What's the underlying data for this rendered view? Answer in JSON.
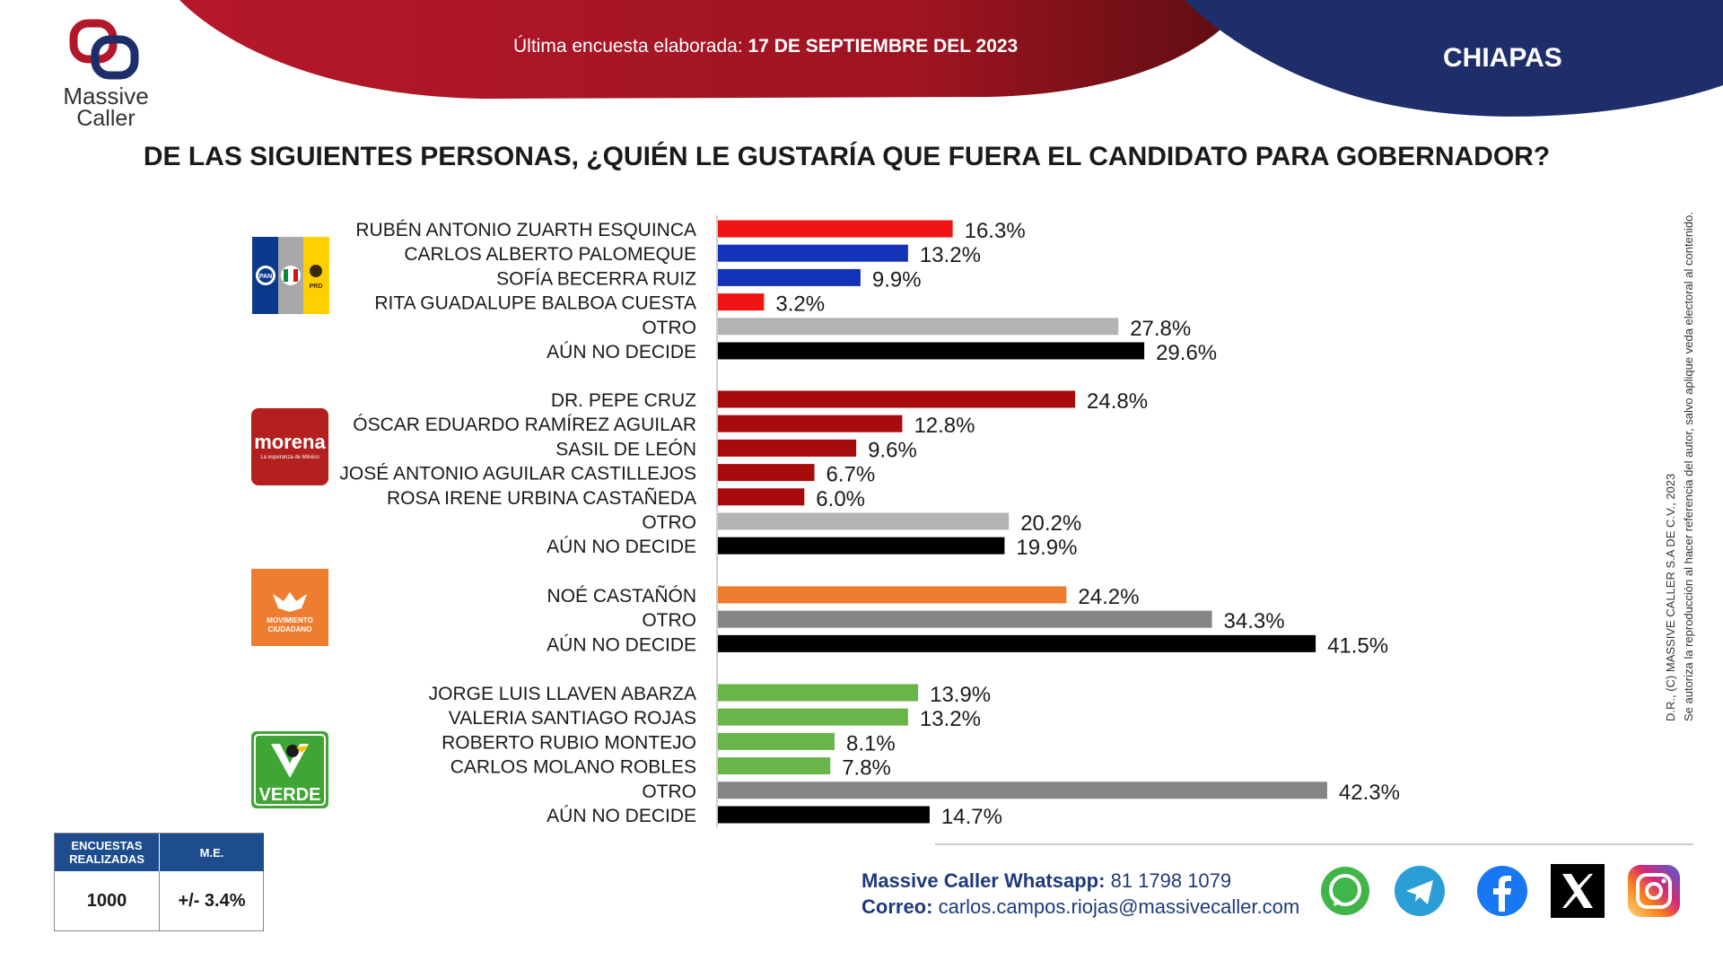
{
  "header": {
    "brand_line1": "Massive",
    "brand_line2": "Caller",
    "survey_prefix": "Última encuesta elaborada: ",
    "survey_date": "17 DE SEPTIEMBRE DEL 2023",
    "state": "CHIAPAS"
  },
  "question": "DE LAS SIGUIENTES PERSONAS, ¿QUIÉN LE GUSTARÍA QUE FUERA EL CANDIDATO PARA GOBERNADOR?",
  "colors": {
    "red": "#f11414",
    "blue": "#1232b8",
    "darkred": "#a80b0b",
    "orange": "#ef7d2f",
    "green": "#6ab54a",
    "lightgray": "#b4b4b4",
    "midgray": "#858585",
    "black": "#000000",
    "header_red": "#a4161d",
    "header_navy": "#1d2e6b"
  },
  "party_logos": {
    "coalition": {
      "pan": "PAN",
      "prd": "PRD"
    },
    "morena": {
      "name": "morena",
      "tagline": "La esperanza de México"
    },
    "mc": {
      "line1": "MOVIMIENTO",
      "line2": "CIUDADANO"
    },
    "verde": {
      "name": "VERDE"
    }
  },
  "chart_data": {
    "type": "bar",
    "orientation": "horizontal",
    "unit": "%",
    "groups": [
      {
        "party": "PAN-PRI-PRD",
        "items": [
          {
            "label": "RUBÉN ANTONIO ZUARTH ESQUINCA",
            "value": 16.3,
            "display": "16.3%",
            "color": "red"
          },
          {
            "label": "CARLOS ALBERTO PALOMEQUE",
            "value": 13.2,
            "display": "13.2%",
            "color": "blue"
          },
          {
            "label": "SOFÍA BECERRA RUIZ",
            "value": 9.9,
            "display": "9.9%",
            "color": "blue"
          },
          {
            "label": "RITA GUADALUPE BALBOA CUESTA",
            "value": 3.2,
            "display": "3.2%",
            "color": "red"
          },
          {
            "label": "OTRO",
            "value": 27.8,
            "display": "27.8%",
            "color": "lightgray"
          },
          {
            "label": "AÚN NO DECIDE",
            "value": 29.6,
            "display": "29.6%",
            "color": "black"
          }
        ]
      },
      {
        "party": "MORENA",
        "items": [
          {
            "label": "DR. PEPE CRUZ",
            "value": 24.8,
            "display": "24.8%",
            "color": "darkred"
          },
          {
            "label": "ÓSCAR EDUARDO RAMÍREZ AGUILAR",
            "value": 12.8,
            "display": "12.8%",
            "color": "darkred"
          },
          {
            "label": "SASIL DE LEÓN",
            "value": 9.6,
            "display": "9.6%",
            "color": "darkred"
          },
          {
            "label": "JOSÉ ANTONIO AGUILAR CASTILLEJOS",
            "value": 6.7,
            "display": "6.7%",
            "color": "darkred"
          },
          {
            "label": "ROSA IRENE URBINA CASTAÑEDA",
            "value": 6.0,
            "display": "6.0%",
            "color": "darkred"
          },
          {
            "label": "OTRO",
            "value": 20.2,
            "display": "20.2%",
            "color": "lightgray"
          },
          {
            "label": "AÚN NO DECIDE",
            "value": 19.9,
            "display": "19.9%",
            "color": "black"
          }
        ]
      },
      {
        "party": "MOVIMIENTO CIUDADANO",
        "items": [
          {
            "label": "NOÉ CASTAÑÓN",
            "value": 24.2,
            "display": "24.2%",
            "color": "orange"
          },
          {
            "label": "OTRO",
            "value": 34.3,
            "display": "34.3%",
            "color": "midgray"
          },
          {
            "label": "AÚN NO DECIDE",
            "value": 41.5,
            "display": "41.5%",
            "color": "black"
          }
        ]
      },
      {
        "party": "VERDE",
        "items": [
          {
            "label": "JORGE LUIS LLAVEN ABARZA",
            "value": 13.9,
            "display": "13.9%",
            "color": "green"
          },
          {
            "label": "VALERIA SANTIAGO ROJAS",
            "value": 13.2,
            "display": "13.2%",
            "color": "green"
          },
          {
            "label": "ROBERTO RUBIO MONTEJO",
            "value": 8.1,
            "display": "8.1%",
            "color": "green"
          },
          {
            "label": "CARLOS MOLANO ROBLES",
            "value": 7.8,
            "display": "7.8%",
            "color": "green"
          },
          {
            "label": "OTRO",
            "value": 42.3,
            "display": "42.3%",
            "color": "midgray"
          },
          {
            "label": "AÚN NO DECIDE",
            "value": 14.7,
            "display": "14.7%",
            "color": "black"
          }
        ]
      }
    ]
  },
  "stats": {
    "header_surveys": "ENCUESTAS REALIZADAS",
    "header_me": "M.E.",
    "surveys": "1000",
    "me": "+/- 3.4%"
  },
  "footer": {
    "whatsapp_label": "Massive Caller Whatsapp:",
    "whatsapp_number": "81 1798 1079",
    "email_label": "Correo:",
    "email": "carlos.campos.riojas@massivecaller.com",
    "social_icons": [
      "whatsapp-icon",
      "telegram-icon",
      "facebook-icon",
      "x-icon",
      "instagram-icon"
    ]
  },
  "legal": {
    "line1": "D.R., (C) MASSIVE CALLER S.A DE C.V., 2023",
    "line2": "Se autoriza la reproducción al hacer referencia del autor, salvo aplique veda electoral al contenido."
  }
}
